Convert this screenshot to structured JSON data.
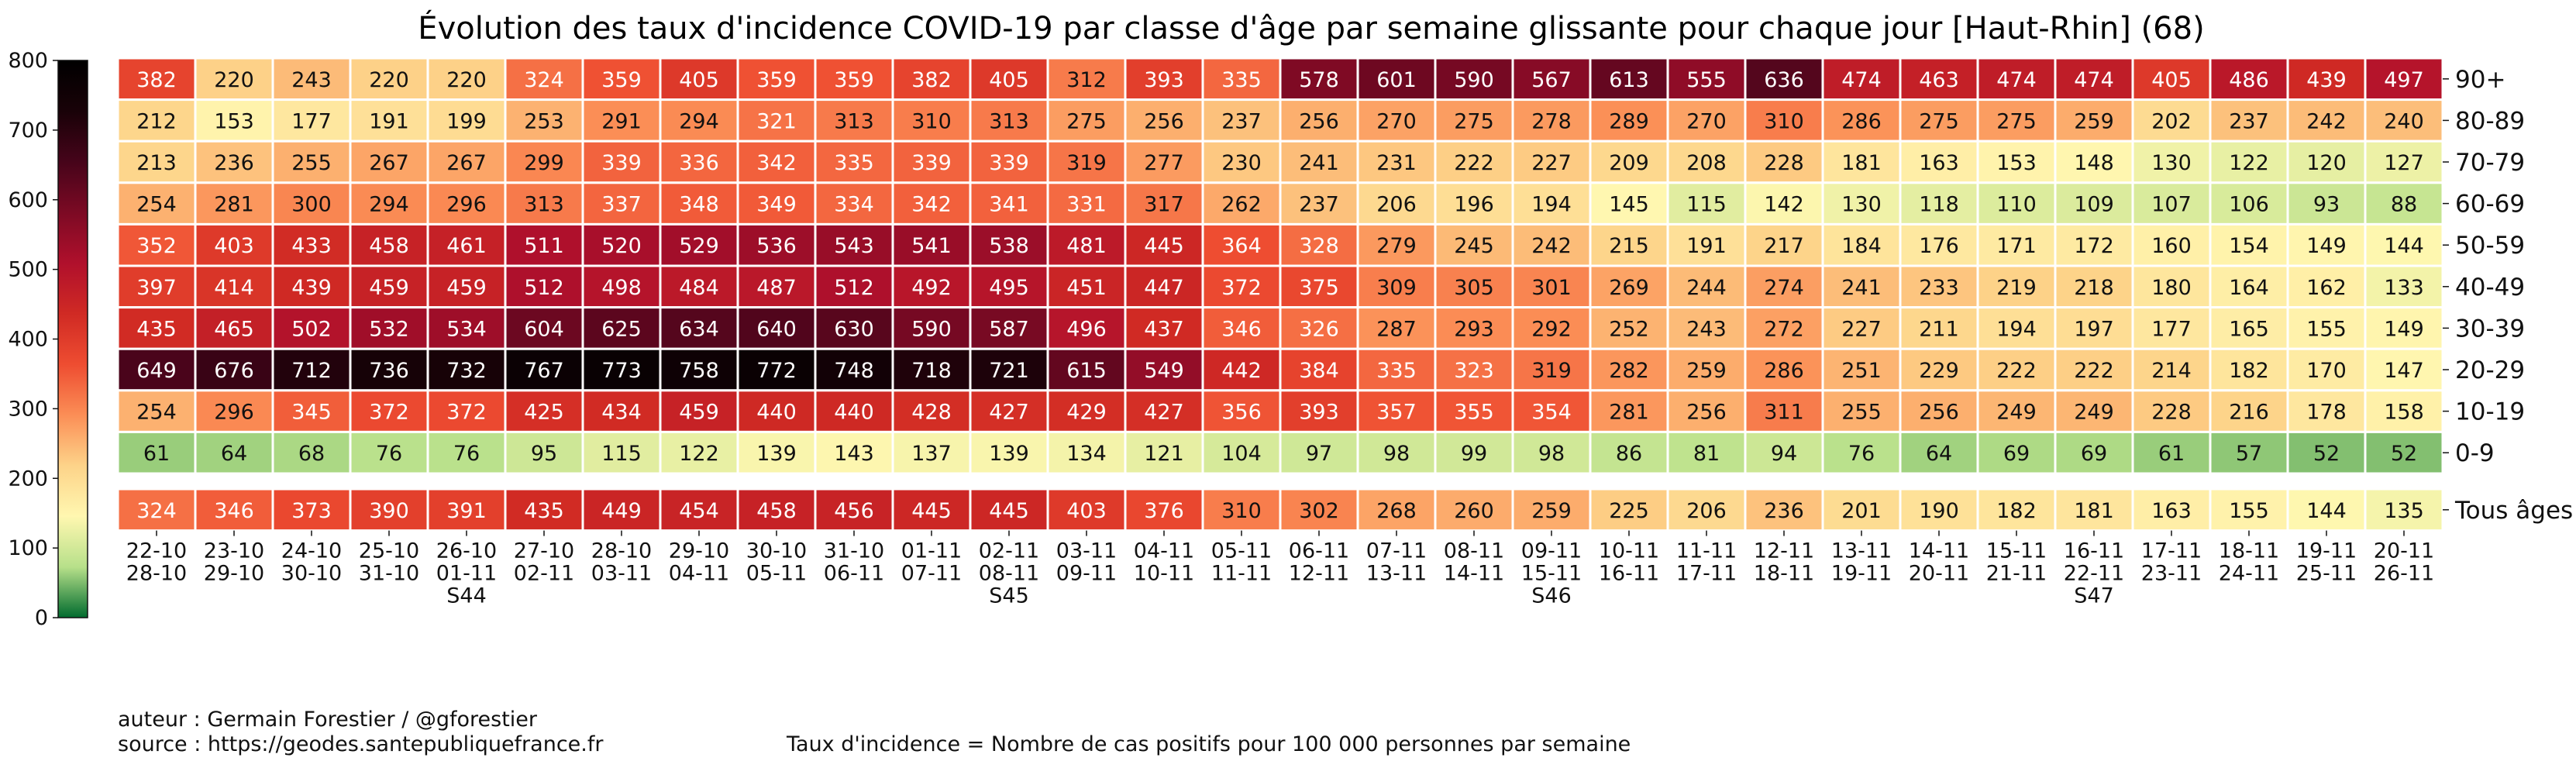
{
  "chart_data": {
    "type": "heatmap",
    "title": "Évolution des taux d'incidence COVID-19 par classe d'âge par semaine glissante pour chaque jour [Haut-Rhin] (68)",
    "rows": [
      "90+",
      "80-89",
      "70-79",
      "60-69",
      "50-59",
      "40-49",
      "30-39",
      "20-29",
      "10-19",
      "0-9"
    ],
    "total_row": "Tous âges",
    "columns": [
      [
        "22-10",
        "28-10"
      ],
      [
        "23-10",
        "29-10"
      ],
      [
        "24-10",
        "30-10"
      ],
      [
        "25-10",
        "31-10"
      ],
      [
        "26-10",
        "01-11"
      ],
      [
        "27-10",
        "02-11"
      ],
      [
        "28-10",
        "03-11"
      ],
      [
        "29-10",
        "04-11"
      ],
      [
        "30-10",
        "05-11"
      ],
      [
        "31-10",
        "06-11"
      ],
      [
        "01-11",
        "07-11"
      ],
      [
        "02-11",
        "08-11"
      ],
      [
        "03-11",
        "09-11"
      ],
      [
        "04-11",
        "10-11"
      ],
      [
        "05-11",
        "11-11"
      ],
      [
        "06-11",
        "12-11"
      ],
      [
        "07-11",
        "13-11"
      ],
      [
        "08-11",
        "14-11"
      ],
      [
        "09-11",
        "15-11"
      ],
      [
        "10-11",
        "16-11"
      ],
      [
        "11-11",
        "17-11"
      ],
      [
        "12-11",
        "18-11"
      ],
      [
        "13-11",
        "19-11"
      ],
      [
        "14-11",
        "20-11"
      ],
      [
        "15-11",
        "21-11"
      ],
      [
        "16-11",
        "22-11"
      ],
      [
        "17-11",
        "23-11"
      ],
      [
        "18-11",
        "24-11"
      ],
      [
        "19-11",
        "25-11"
      ],
      [
        "20-11",
        "26-11"
      ]
    ],
    "week_labels": [
      {
        "column": 4,
        "label": "S44"
      },
      {
        "column": 11,
        "label": "S45"
      },
      {
        "column": 18,
        "label": "S46"
      },
      {
        "column": 25,
        "label": "S47"
      }
    ],
    "values": [
      [
        382,
        220,
        243,
        220,
        220,
        324,
        359,
        405,
        359,
        359,
        382,
        405,
        312,
        393,
        335,
        578,
        601,
        590,
        567,
        613,
        555,
        636,
        474,
        463,
        474,
        474,
        405,
        486,
        439,
        497
      ],
      [
        212,
        153,
        177,
        191,
        199,
        253,
        291,
        294,
        321,
        313,
        310,
        313,
        275,
        256,
        237,
        256,
        270,
        275,
        278,
        289,
        270,
        310,
        286,
        275,
        275,
        259,
        202,
        237,
        242,
        240
      ],
      [
        213,
        236,
        255,
        267,
        267,
        299,
        339,
        336,
        342,
        335,
        339,
        339,
        319,
        277,
        230,
        241,
        231,
        222,
        227,
        209,
        208,
        228,
        181,
        163,
        153,
        148,
        130,
        122,
        120,
        127
      ],
      [
        254,
        281,
        300,
        294,
        296,
        313,
        337,
        348,
        349,
        334,
        342,
        341,
        331,
        317,
        262,
        237,
        206,
        196,
        194,
        145,
        115,
        142,
        130,
        118,
        110,
        109,
        107,
        106,
        93,
        88
      ],
      [
        352,
        403,
        433,
        458,
        461,
        511,
        520,
        529,
        536,
        543,
        541,
        538,
        481,
        445,
        364,
        328,
        279,
        245,
        242,
        215,
        191,
        217,
        184,
        176,
        171,
        172,
        160,
        154,
        149,
        144
      ],
      [
        397,
        414,
        439,
        459,
        459,
        512,
        498,
        484,
        487,
        512,
        492,
        495,
        451,
        447,
        372,
        375,
        309,
        305,
        301,
        269,
        244,
        274,
        241,
        233,
        219,
        218,
        180,
        164,
        162,
        133
      ],
      [
        435,
        465,
        502,
        532,
        534,
        604,
        625,
        634,
        640,
        630,
        590,
        587,
        496,
        437,
        346,
        326,
        287,
        293,
        292,
        252,
        243,
        272,
        227,
        211,
        194,
        197,
        177,
        165,
        155,
        149
      ],
      [
        649,
        676,
        712,
        736,
        732,
        767,
        773,
        758,
        772,
        748,
        718,
        721,
        615,
        549,
        442,
        384,
        335,
        323,
        319,
        282,
        259,
        286,
        251,
        229,
        222,
        222,
        214,
        182,
        170,
        147
      ],
      [
        254,
        296,
        345,
        372,
        372,
        425,
        434,
        459,
        440,
        440,
        428,
        427,
        429,
        427,
        356,
        393,
        357,
        355,
        354,
        281,
        256,
        311,
        255,
        256,
        249,
        249,
        228,
        216,
        178,
        158
      ],
      [
        61,
        64,
        68,
        76,
        76,
        95,
        115,
        122,
        139,
        143,
        137,
        139,
        134,
        121,
        104,
        97,
        98,
        99,
        98,
        86,
        81,
        94,
        76,
        64,
        69,
        69,
        61,
        57,
        52,
        52
      ]
    ],
    "totals": [
      324,
      346,
      373,
      390,
      391,
      435,
      449,
      454,
      458,
      456,
      445,
      445,
      403,
      376,
      310,
      302,
      268,
      260,
      259,
      225,
      206,
      236,
      201,
      190,
      182,
      181,
      163,
      155,
      144,
      135
    ],
    "colorbar": {
      "range": [
        0,
        800
      ],
      "ticks": [
        0,
        100,
        200,
        300,
        400,
        500,
        600,
        700,
        800
      ],
      "colormap": [
        "#006b2e",
        "#b7e08a",
        "#fff7b0",
        "#fdd389",
        "#fb8e56",
        "#ee4d31",
        "#d02a24",
        "#b0102c",
        "#7c0a24",
        "#46041a",
        "#190208",
        "#000000"
      ]
    }
  },
  "footer": {
    "author": "auteur : Germain Forestier / @gforestier",
    "source": "source : https://geodes.santepubliquefrance.fr",
    "definition": "Taux d'incidence = Nombre de cas positifs pour 100 000 personnes par semaine"
  }
}
